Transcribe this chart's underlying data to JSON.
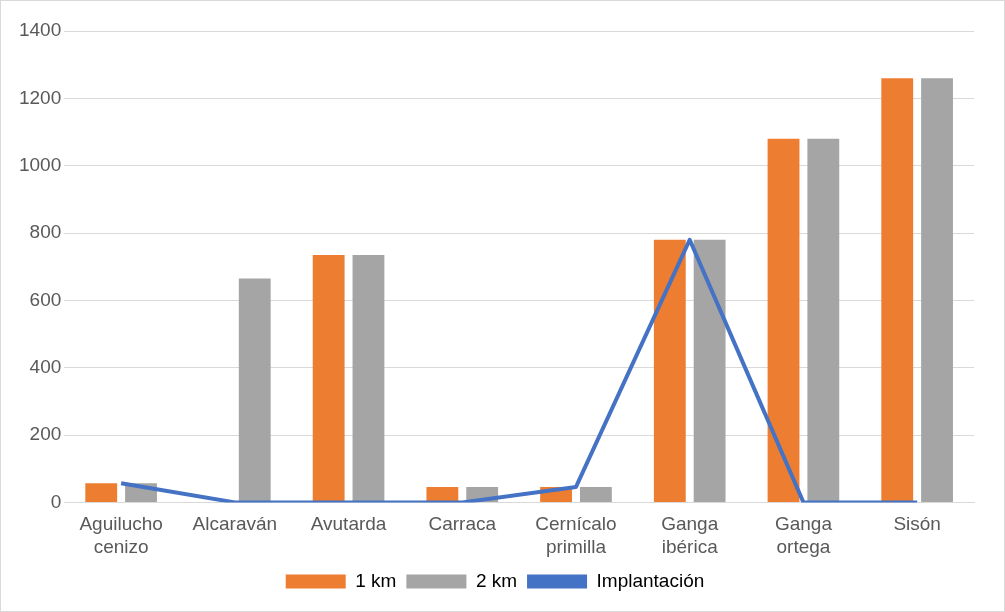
{
  "chart_data": {
    "type": "bar",
    "categories": [
      "Aguilucho cenizo",
      "Alcaraván",
      "Avutarda",
      "Carraca",
      "Cernícalo primilla",
      "Ganga ibérica",
      "Ganga ortega",
      "Sisón"
    ],
    "series": [
      {
        "name": "1 km",
        "color": "#ed7d31",
        "values": [
          57,
          0,
          735,
          46,
          46,
          780,
          1080,
          1260
        ]
      },
      {
        "name": "2 km",
        "color": "#a5a5a5",
        "values": [
          57,
          665,
          735,
          46,
          46,
          780,
          1080,
          1260
        ]
      },
      {
        "name": "Implantación",
        "type": "line",
        "color": "#4472c4",
        "values": [
          57,
          0,
          0,
          0,
          46,
          780,
          0,
          0
        ]
      }
    ],
    "ylim": [
      0,
      1400
    ],
    "yticks": [
      0,
      200,
      400,
      600,
      800,
      1000,
      1200,
      1400
    ],
    "grid": "y",
    "legend": "bottom",
    "marker": "none"
  }
}
